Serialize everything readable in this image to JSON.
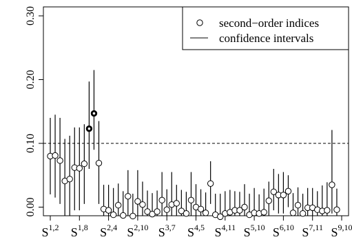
{
  "chart_data": {
    "type": "scatter",
    "title": "",
    "xlabel": "",
    "ylabel": "",
    "ylim": [
      -0.01,
      0.3
    ],
    "yticks": [
      {
        "value": 0.0,
        "label": "0.00"
      },
      {
        "value": 0.1,
        "label": "0.10"
      },
      {
        "value": 0.2,
        "label": "0.20"
      },
      {
        "value": 0.3,
        "label": "0.30"
      }
    ],
    "x_tick_labels": [
      {
        "index": 1,
        "base": "S",
        "sup": "1,2"
      },
      {
        "index": 7,
        "base": "S",
        "sup": "1,8"
      },
      {
        "index": 13,
        "base": "S",
        "sup": "2,4"
      },
      {
        "index": 19,
        "base": "S",
        "sup": "2,10"
      },
      {
        "index": 25,
        "base": "S",
        "sup": "3,7"
      },
      {
        "index": 31,
        "base": "S",
        "sup": "4,5"
      },
      {
        "index": 37,
        "base": "S",
        "sup": "4,11"
      },
      {
        "index": 43,
        "base": "S",
        "sup": "5,10"
      },
      {
        "index": 49,
        "base": "S",
        "sup": "6,10"
      },
      {
        "index": 55,
        "base": "S",
        "sup": "7,11"
      },
      {
        "index": 61,
        "base": "S",
        "sup": "9,10"
      }
    ],
    "reference_line": {
      "y": 0.1,
      "style": "dashed"
    },
    "legend": {
      "position": "top-right",
      "entries": [
        {
          "label": "second−order indices",
          "symbol": "circle"
        },
        {
          "label": "confidence intervals",
          "symbol": "line"
        }
      ]
    },
    "grid": false,
    "series": [
      {
        "values": [
          0.08,
          0.081,
          0.073,
          0.041,
          0.044,
          0.062,
          0.061,
          0.068,
          0.123,
          0.147,
          0.069,
          -0.003,
          -0.005,
          -0.012,
          0.003,
          -0.013,
          0.017,
          -0.014,
          0.009,
          0.004,
          -0.007,
          -0.011,
          -0.007,
          0.011,
          -0.004,
          0.004,
          0.006,
          -0.006,
          -0.01,
          0.011,
          0.0,
          -0.003,
          -0.009,
          0.037,
          -0.012,
          -0.015,
          -0.01,
          -0.008,
          -0.005,
          -0.005,
          0.0,
          -0.012,
          -0.009,
          -0.01,
          -0.008,
          0.01,
          0.024,
          0.019,
          0.019,
          0.025,
          -0.009,
          0.003,
          -0.01,
          -0.001,
          -0.001,
          -0.004,
          -0.006,
          -0.005,
          0.035,
          -0.004
        ],
        "lower": [
          0.02,
          0.015,
          0.005,
          -0.025,
          -0.025,
          -0.005,
          -0.005,
          0.005,
          0.06,
          0.09,
          0.005,
          -0.04,
          -0.04,
          -0.045,
          -0.03,
          -0.045,
          -0.015,
          -0.045,
          -0.02,
          -0.02,
          -0.04,
          -0.045,
          -0.04,
          -0.015,
          -0.035,
          -0.025,
          -0.02,
          -0.035,
          -0.04,
          -0.015,
          -0.03,
          -0.03,
          -0.04,
          0.005,
          -0.045,
          -0.045,
          -0.04,
          -0.04,
          -0.035,
          -0.035,
          -0.03,
          -0.045,
          -0.04,
          -0.04,
          -0.04,
          -0.02,
          -0.005,
          -0.01,
          -0.01,
          0.0,
          -0.04,
          -0.025,
          -0.04,
          -0.03,
          -0.03,
          -0.035,
          -0.035,
          -0.035,
          -0.01,
          -0.035
        ],
        "upper": [
          0.14,
          0.145,
          0.14,
          0.107,
          0.112,
          0.125,
          0.125,
          0.13,
          0.197,
          0.215,
          0.135,
          0.035,
          0.035,
          0.03,
          0.037,
          0.025,
          0.058,
          0.021,
          0.058,
          0.04,
          0.026,
          0.022,
          0.026,
          0.055,
          0.028,
          0.055,
          0.035,
          0.027,
          0.024,
          0.055,
          0.036,
          0.028,
          0.023,
          0.072,
          0.021,
          0.021,
          0.025,
          0.027,
          0.025,
          0.024,
          0.036,
          0.021,
          0.03,
          0.02,
          0.029,
          0.04,
          0.06,
          0.052,
          0.055,
          0.05,
          0.022,
          0.031,
          0.021,
          0.03,
          0.03,
          0.025,
          0.034,
          0.039,
          0.121,
          0.029
        ],
        "filled_indices": [
          8,
          9
        ]
      }
    ]
  }
}
